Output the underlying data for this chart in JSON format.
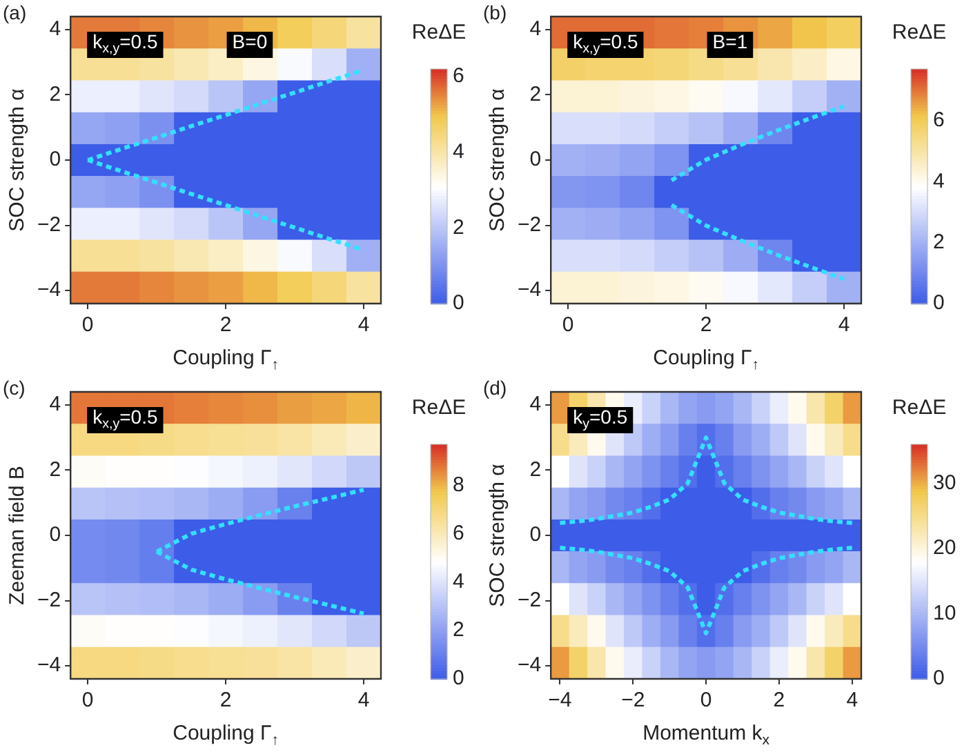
{
  "chart_data": [
    {
      "type": "heatmap",
      "title": "(a)",
      "xlabel": "Coupling Γ$_{↑}$",
      "ylabel": "SOC strength α",
      "clabel": "ReΔE",
      "annotations": [
        "k$_{x,y}$=0.5",
        "B=0"
      ],
      "categories": [
        "0",
        null,
        null,
        null,
        "2",
        null,
        null,
        null,
        "4"
      ],
      "cells": [
        [
          5.6,
          5.6,
          5.5,
          5.4,
          5.3,
          5.1,
          4.8,
          4.5,
          4.1
        ],
        [
          4.2,
          4.2,
          4.1,
          3.9,
          3.7,
          3.4,
          3.0,
          2.5,
          1.6
        ],
        [
          2.8,
          2.8,
          2.6,
          2.4,
          2.0,
          1.4,
          0,
          0,
          0
        ],
        [
          1.4,
          1.3,
          1.0,
          0,
          0,
          0,
          0,
          0,
          0
        ],
        [
          0,
          0,
          0,
          0,
          0,
          0,
          0,
          0,
          0
        ],
        [
          1.4,
          1.3,
          1.0,
          0,
          0,
          0,
          0,
          0,
          0
        ],
        [
          2.8,
          2.8,
          2.6,
          2.4,
          2.0,
          1.4,
          0,
          0,
          0
        ],
        [
          4.2,
          4.2,
          4.1,
          3.9,
          3.7,
          3.4,
          3.0,
          2.5,
          1.6
        ],
        [
          5.6,
          5.6,
          5.5,
          5.4,
          5.3,
          5.1,
          4.8,
          4.5,
          4.1
        ]
      ],
      "ylim": [
        -4.4,
        4.4
      ],
      "yticks": [
        -4,
        -2,
        0,
        2,
        4
      ],
      "clim": [
        0,
        6.2
      ],
      "cticks": [
        0,
        2,
        4,
        6
      ],
      "line_style": "dashed",
      "series": [
        {
          "type": "line",
          "values": [
            0,
            0.35,
            0.69,
            1.04,
            1.38,
            1.73,
            2.07,
            2.42,
            2.76
          ],
          "color": "#33e0ff"
        },
        {
          "type": "line",
          "values": [
            0,
            -0.35,
            -0.69,
            -1.04,
            -1.38,
            -1.73,
            -2.07,
            -2.42,
            -2.76
          ],
          "color": "#33e0ff"
        }
      ]
    },
    {
      "type": "heatmap",
      "title": "(b)",
      "xlabel": "Coupling Γ$_{↑}$",
      "ylabel": "SOC strength α",
      "clabel": "ReΔE",
      "annotations": [
        "k$_{x,y}$=0.5",
        "B=1"
      ],
      "categories": [
        "0",
        null,
        null,
        null,
        "2",
        null,
        null,
        null,
        "4"
      ],
      "cells": [
        [
          7.1,
          7.1,
          7.1,
          7.0,
          6.9,
          6.7,
          6.5,
          6.2,
          5.9
        ],
        [
          5.8,
          5.7,
          5.7,
          5.6,
          5.4,
          5.2,
          4.9,
          4.6,
          4.2
        ],
        [
          4.4,
          4.4,
          4.3,
          4.2,
          4.0,
          3.7,
          3.3,
          2.7,
          2.0
        ],
        [
          3.1,
          3.1,
          3.0,
          2.7,
          2.4,
          1.9,
          1.0,
          0,
          0
        ],
        [
          2.0,
          1.9,
          1.7,
          1.3,
          0,
          0,
          0,
          0,
          0
        ],
        [
          1.4,
          1.3,
          1.0,
          0,
          0,
          0,
          0,
          0,
          0
        ],
        [
          2.0,
          1.9,
          1.7,
          1.3,
          0,
          0,
          0,
          0,
          0
        ],
        [
          3.1,
          3.1,
          3.0,
          2.7,
          2.4,
          1.9,
          1.0,
          0,
          0
        ],
        [
          4.4,
          4.4,
          4.3,
          4.2,
          4.0,
          3.7,
          3.3,
          2.7,
          2.0
        ]
      ],
      "ylim": [
        -4.4,
        4.4
      ],
      "yticks": [
        -4,
        -2,
        0,
        2,
        4
      ],
      "clim": [
        0,
        7.7
      ],
      "cticks": [
        0,
        2,
        4,
        6
      ],
      "line_style": "dashed",
      "series": [
        {
          "type": "line",
          "values": [
            null,
            null,
            null,
            -0.62,
            0.01,
            0.46,
            0.88,
            1.27,
            1.65
          ],
          "color": "#33e0ff"
        },
        {
          "type": "line",
          "values": [
            null,
            null,
            null,
            -1.38,
            -2.01,
            -2.46,
            -2.88,
            -3.27,
            -3.65
          ],
          "color": "#33e0ff"
        }
      ]
    },
    {
      "type": "heatmap",
      "title": "(c)",
      "xlabel": "Coupling Γ$_{↑}$",
      "ylabel": "Zeeman field B",
      "clabel": "ReΔE",
      "annotations": [
        "k$_{x,y}$=0.5"
      ],
      "categories": [
        "0",
        null,
        null,
        null,
        "2",
        null,
        null,
        null,
        "4"
      ],
      "cells": [
        [
          8.8,
          8.8,
          8.8,
          8.7,
          8.6,
          8.5,
          8.3,
          8.2,
          8.0
        ],
        [
          6.9,
          6.9,
          6.8,
          6.7,
          6.6,
          6.5,
          6.3,
          6.0,
          5.7
        ],
        [
          5.0,
          4.9,
          4.9,
          4.8,
          4.6,
          4.4,
          4.1,
          3.7,
          3.2
        ],
        [
          3.1,
          3.0,
          2.9,
          2.7,
          2.4,
          1.9,
          1.1,
          0,
          0
        ],
        [
          1.4,
          1.3,
          1.0,
          0,
          0,
          0,
          0,
          0,
          0
        ],
        [
          1.4,
          1.3,
          1.0,
          0,
          0,
          0,
          0,
          0,
          0
        ],
        [
          3.1,
          3.0,
          2.9,
          2.7,
          2.4,
          1.9,
          1.1,
          0,
          0
        ],
        [
          5.0,
          4.9,
          4.9,
          4.8,
          4.6,
          4.4,
          4.1,
          3.7,
          3.2
        ],
        [
          6.9,
          6.9,
          6.8,
          6.7,
          6.6,
          6.5,
          6.3,
          6.0,
          5.7
        ]
      ],
      "ylim": [
        -4.4,
        4.4
      ],
      "yticks": [
        -4,
        -2,
        0,
        2,
        4
      ],
      "clim": [
        0,
        9.7
      ],
      "cticks": [
        0,
        2,
        4,
        6,
        8
      ],
      "line_style": "dashed",
      "series": [
        {
          "type": "line",
          "values": [
            null,
            null,
            -0.5,
            0.05,
            0.35,
            0.62,
            0.89,
            1.14,
            1.4
          ],
          "color": "#33e0ff"
        },
        {
          "type": "line",
          "values": [
            null,
            null,
            -0.5,
            -1.05,
            -1.35,
            -1.62,
            -1.89,
            -2.14,
            -2.4
          ],
          "color": "#33e0ff"
        }
      ]
    },
    {
      "type": "heatmap",
      "title": "(d)",
      "xlabel": "Momentum k$_{x}$",
      "ylabel": "SOC strength α",
      "clabel": "ReΔE",
      "annotations": [
        "k$_{y}$=0.5"
      ],
      "categories": [
        "−4",
        null,
        null,
        null,
        "−2",
        null,
        null,
        null,
        "0",
        null,
        null,
        null,
        "2",
        null,
        null,
        null,
        "4"
      ],
      "cells": [
        [
          31,
          27,
          23,
          19,
          16,
          13,
          10,
          8,
          7,
          8,
          10,
          13,
          16,
          19,
          23,
          27,
          31
        ],
        [
          25,
          22,
          19,
          15,
          12,
          9,
          7,
          4,
          2,
          4,
          7,
          9,
          12,
          15,
          19,
          22,
          25
        ],
        [
          18,
          15,
          13,
          10,
          8,
          6,
          4,
          2,
          0,
          2,
          4,
          6,
          8,
          10,
          13,
          15,
          18
        ],
        [
          10,
          8,
          7,
          5,
          4,
          2,
          0,
          0,
          0,
          0,
          0,
          2,
          4,
          5,
          7,
          8,
          10
        ],
        [
          0,
          0,
          0,
          0,
          0,
          0,
          0,
          0,
          0,
          0,
          0,
          0,
          0,
          0,
          0,
          0,
          0
        ],
        [
          10,
          8,
          7,
          5,
          4,
          2,
          0,
          0,
          0,
          0,
          0,
          2,
          4,
          5,
          7,
          8,
          10
        ],
        [
          18,
          15,
          13,
          10,
          8,
          6,
          4,
          2,
          0,
          2,
          4,
          6,
          8,
          10,
          13,
          15,
          18
        ],
        [
          25,
          22,
          19,
          15,
          12,
          9,
          7,
          4,
          2,
          4,
          7,
          9,
          12,
          15,
          19,
          22,
          25
        ],
        [
          31,
          27,
          23,
          19,
          16,
          13,
          10,
          8,
          7,
          8,
          10,
          13,
          16,
          19,
          23,
          27,
          31
        ]
      ],
      "ylim": [
        -4.4,
        4.4
      ],
      "yticks": [
        -4,
        -2,
        0,
        2,
        4
      ],
      "clim": [
        0,
        36
      ],
      "cticks": [
        0,
        10,
        20,
        30
      ],
      "line_style": "dashed",
      "series": [
        {
          "type": "line",
          "values": [
            0.38,
            0.43,
            0.5,
            0.6,
            0.7,
            0.88,
            1.1,
            1.6,
            3,
            1.6,
            1.1,
            0.88,
            0.7,
            0.6,
            0.5,
            0.43,
            0.38
          ],
          "color": "#33e0ff"
        },
        {
          "type": "line",
          "values": [
            -0.38,
            -0.43,
            -0.5,
            -0.6,
            -0.7,
            -0.88,
            -1.1,
            -1.6,
            -3,
            -1.6,
            -1.1,
            -0.88,
            -0.7,
            -0.6,
            -0.5,
            -0.43,
            -0.38
          ],
          "color": "#33e0ff"
        }
      ]
    }
  ]
}
